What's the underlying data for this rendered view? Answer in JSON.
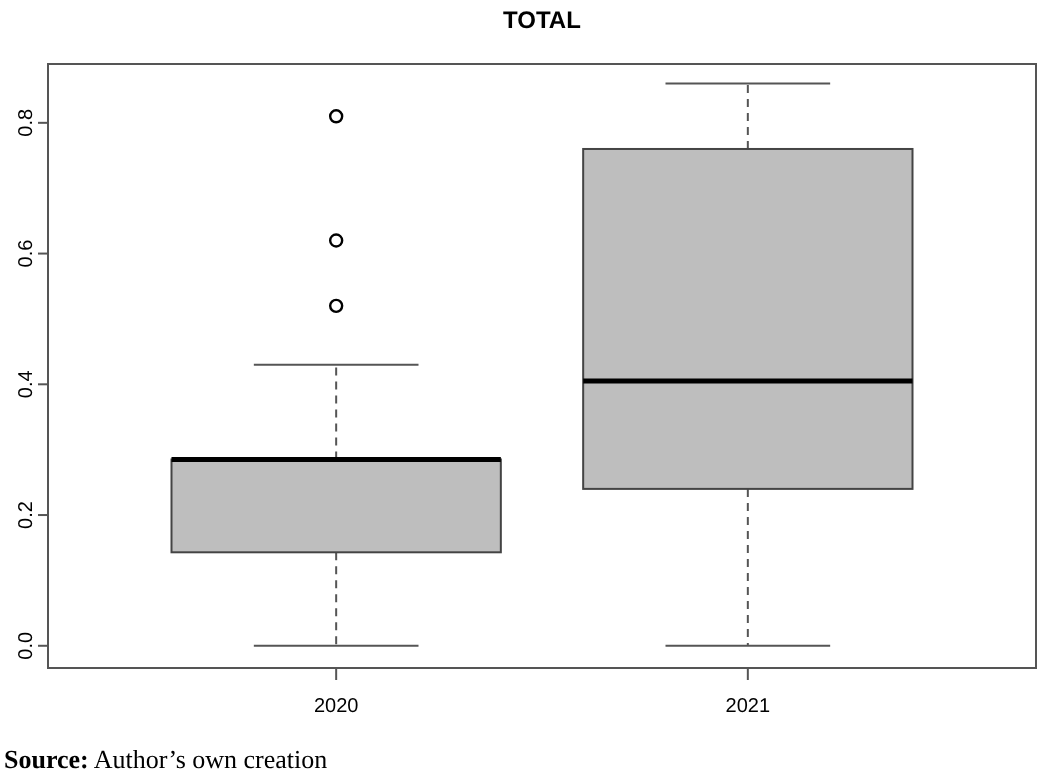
{
  "chart_data": {
    "type": "box",
    "title": "TOTAL",
    "categories": [
      "2020",
      "2021"
    ],
    "color": "#bebebe",
    "ylim": [
      -0.034,
      0.89
    ],
    "yticks": [
      {
        "value": 0,
        "label": "0.0"
      },
      0.2,
      0.4,
      0.6,
      0.8
    ],
    "boxes": [
      {
        "low": 0,
        "q1": 0.143,
        "median": 0.285,
        "q3": 0.285,
        "high": 0.43,
        "outliers": [
          0.52,
          0.62,
          0.81
        ]
      },
      {
        "low": 0,
        "q1": 0.24,
        "median": 0.405,
        "q3": 0.76,
        "high": 0.86
      }
    ],
    "annotations": [
      "Source: Author’s own creation"
    ]
  }
}
